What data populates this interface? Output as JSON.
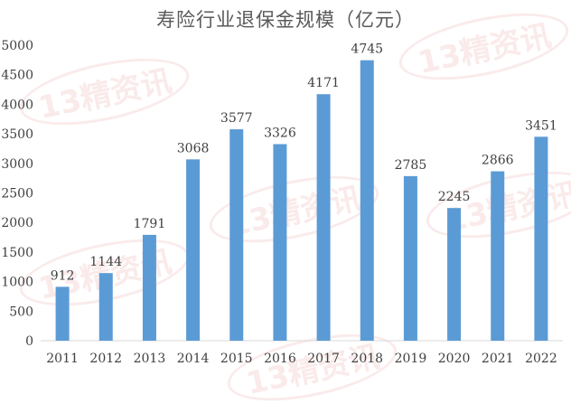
{
  "watermark_text": "13精资讯",
  "chart_data": {
    "type": "bar",
    "title": "寿险行业退保金规模（亿元）",
    "categories": [
      "2011",
      "2012",
      "2013",
      "2014",
      "2015",
      "2016",
      "2017",
      "2018",
      "2019",
      "2020",
      "2021",
      "2022"
    ],
    "values": [
      912,
      1144,
      1791,
      3068,
      3577,
      3326,
      4171,
      4745,
      2785,
      2245,
      2866,
      3451
    ],
    "ylim": [
      0,
      5000
    ],
    "yticks": [
      0,
      500,
      1000,
      1500,
      2000,
      2500,
      3000,
      3500,
      4000,
      4500,
      5000
    ],
    "xlabel": "",
    "ylabel": "",
    "grid": false,
    "legend": "none",
    "data_labels": true,
    "bar_color": "#5b9bd5",
    "text_color": "#404040",
    "axis_color": "#d9d9d9"
  }
}
